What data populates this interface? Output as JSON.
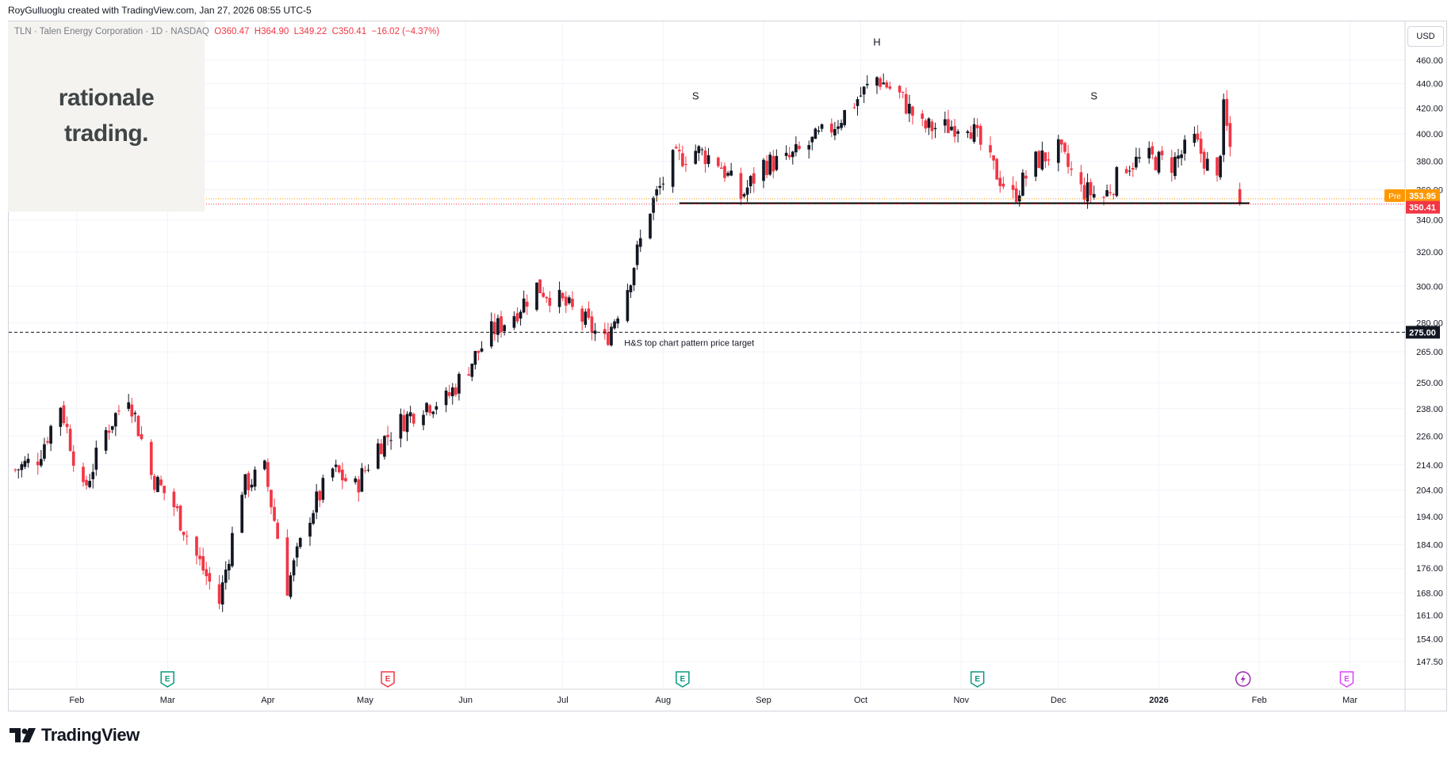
{
  "header": {
    "credit": "RoyGulluoglu created with TradingView.com, Jan 27, 2026 08:55 UTC-5"
  },
  "symbol": {
    "name": "TLN · Talen Energy Corporation · 1D · NASDAQ",
    "open": "O360.47",
    "high": "H364.90",
    "low": "L349.22",
    "close": "C350.41",
    "change": "−16.02 (−4.37%)"
  },
  "logo": {
    "line1": "rationale",
    "line2": "trading."
  },
  "currency": "USD",
  "footer": {
    "brand": "TradingView"
  },
  "colors": {
    "up": "#131722",
    "down": "#f23645",
    "grid": "#f0f3fa",
    "pre_badge": "#ff9800",
    "last_badge": "#f23645"
  },
  "chart_data": {
    "type": "candlestick",
    "y_ticks": [
      "460.00",
      "440.00",
      "420.00",
      "400.00",
      "380.00",
      "360.00",
      "340.00",
      "320.00",
      "300.00",
      "280.00",
      "265.00",
      "250.00",
      "238.00",
      "226.00",
      "214.00",
      "204.00",
      "194.00",
      "184.00",
      "176.00",
      "168.00",
      "161.00",
      "154.00",
      "147.50"
    ],
    "y_scale": "log",
    "x_ticks": [
      "Feb",
      "Mar",
      "Apr",
      "May",
      "Jun",
      "Jul",
      "Aug",
      "Sep",
      "Oct",
      "Nov",
      "Dec",
      "2026",
      "Feb",
      "Mar"
    ],
    "x_tick_dates": [
      "2025-02-01",
      "2025-03-01",
      "2025-04-01",
      "2025-05-01",
      "2025-06-01",
      "2025-07-01",
      "2025-08-01",
      "2025-09-01",
      "2025-10-01",
      "2025-11-01",
      "2025-12-01",
      "2026-01-01",
      "2026-02-01",
      "2026-03-01"
    ],
    "price_badges": [
      {
        "label": "Pre",
        "value": "353.95"
      },
      {
        "label": "",
        "value": "350.41"
      },
      {
        "label": "",
        "value": "275.00"
      }
    ],
    "annotations": [
      {
        "text": "S",
        "date": "2025-08-11",
        "price": 427
      },
      {
        "text": "H",
        "date": "2025-10-06",
        "price": 473
      },
      {
        "text": "S",
        "date": "2025-12-12",
        "price": 427
      },
      {
        "text": "H&S top chart pattern price target",
        "date": "2025-07-20",
        "price": 268
      }
    ],
    "neckline": {
      "price": 351,
      "from": "2025-08-06",
      "to": "2026-01-29"
    },
    "target_line": {
      "price": 275.0
    },
    "earnings_markers": [
      {
        "date": "2025-03-01",
        "kind": "E",
        "color": "#089981"
      },
      {
        "date": "2025-05-08",
        "kind": "E",
        "color": "#f23645"
      },
      {
        "date": "2025-08-07",
        "kind": "E",
        "color": "#089981"
      },
      {
        "date": "2025-11-06",
        "kind": "E",
        "color": "#089981"
      },
      {
        "date": "2026-01-27",
        "kind": "flash",
        "color": "#9c27b0"
      },
      {
        "date": "2026-02-28",
        "kind": "E",
        "color": "#e040fb"
      }
    ],
    "close_path": [
      [
        "2025-01-13",
        212
      ],
      [
        "2025-01-20",
        217
      ],
      [
        "2025-01-27",
        240
      ],
      [
        "2025-02-03",
        203
      ],
      [
        "2025-02-10",
        228
      ],
      [
        "2025-02-17",
        245
      ],
      [
        "2025-02-24",
        210
      ],
      [
        "2025-03-03",
        198
      ],
      [
        "2025-03-10",
        180
      ],
      [
        "2025-03-17",
        165
      ],
      [
        "2025-03-24",
        205
      ],
      [
        "2025-03-31",
        212
      ],
      [
        "2025-04-07",
        170
      ],
      [
        "2025-04-14",
        195
      ],
      [
        "2025-04-21",
        212
      ],
      [
        "2025-04-28",
        205
      ],
      [
        "2025-05-05",
        222
      ],
      [
        "2025-05-12",
        232
      ],
      [
        "2025-05-19",
        240
      ],
      [
        "2025-05-26",
        242
      ],
      [
        "2025-06-02",
        258
      ],
      [
        "2025-06-09",
        275
      ],
      [
        "2025-06-16",
        285
      ],
      [
        "2025-06-23",
        300
      ],
      [
        "2025-06-30",
        292
      ],
      [
        "2025-07-07",
        282
      ],
      [
        "2025-07-14",
        270
      ],
      [
        "2025-07-21",
        300
      ],
      [
        "2025-07-28",
        348
      ],
      [
        "2025-08-04",
        380
      ],
      [
        "2025-08-11",
        388
      ],
      [
        "2025-08-18",
        380
      ],
      [
        "2025-08-25",
        355
      ],
      [
        "2025-09-01",
        378
      ],
      [
        "2025-09-08",
        380
      ],
      [
        "2025-09-15",
        392
      ],
      [
        "2025-09-22",
        405
      ],
      [
        "2025-09-29",
        425
      ],
      [
        "2025-10-06",
        445
      ],
      [
        "2025-10-13",
        430
      ],
      [
        "2025-10-20",
        405
      ],
      [
        "2025-10-27",
        405
      ],
      [
        "2025-11-03",
        410
      ],
      [
        "2025-11-10",
        378
      ],
      [
        "2025-11-17",
        355
      ],
      [
        "2025-11-24",
        380
      ],
      [
        "2025-12-01",
        388
      ],
      [
        "2025-12-08",
        360
      ],
      [
        "2025-12-15",
        355
      ],
      [
        "2025-12-22",
        378
      ],
      [
        "2025-12-29",
        382
      ],
      [
        "2026-01-05",
        378
      ],
      [
        "2026-01-12",
        395
      ],
      [
        "2026-01-19",
        365
      ],
      [
        "2026-01-21",
        418
      ],
      [
        "2026-01-26",
        350.41
      ]
    ]
  }
}
